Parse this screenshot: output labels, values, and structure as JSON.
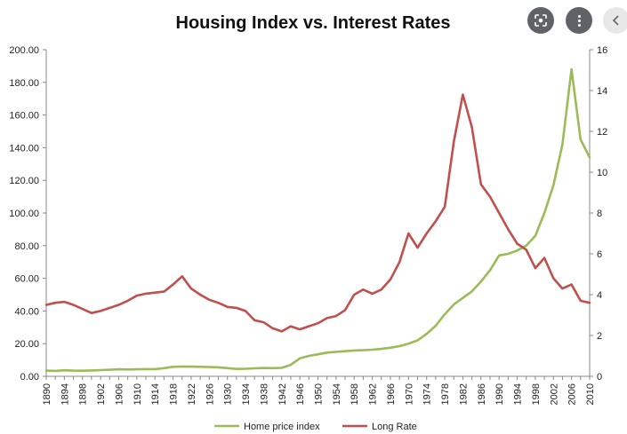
{
  "colors": {
    "home": "#9BBB59",
    "rate": "#C0504D",
    "overlay": "#5f6368"
  },
  "icons": {
    "lens": "lens-icon",
    "more": "more-vert-icon",
    "back": "back-arrow-icon"
  },
  "chart_data": {
    "type": "line",
    "title": "Housing Index vs. Interest Rates",
    "grid": false,
    "legend_position": "bottom",
    "x": [
      1890,
      1892,
      1894,
      1896,
      1898,
      1900,
      1902,
      1904,
      1906,
      1908,
      1910,
      1912,
      1914,
      1916,
      1918,
      1920,
      1922,
      1924,
      1926,
      1928,
      1930,
      1932,
      1934,
      1936,
      1938,
      1940,
      1942,
      1944,
      1946,
      1948,
      1950,
      1952,
      1954,
      1956,
      1958,
      1960,
      1962,
      1964,
      1966,
      1968,
      1970,
      1972,
      1974,
      1976,
      1978,
      1980,
      1982,
      1984,
      1986,
      1988,
      1990,
      1992,
      1994,
      1996,
      1998,
      2000,
      2002,
      2004,
      2006,
      2008,
      2010
    ],
    "xlim": [
      1890,
      2010
    ],
    "x_ticks": [
      "1890",
      "1894",
      "1898",
      "1902",
      "1906",
      "1910",
      "1914",
      "1918",
      "1922",
      "1926",
      "1930",
      "1934",
      "1938",
      "1942",
      "1946",
      "1950",
      "1954",
      "1958",
      "1962",
      "1966",
      "1970",
      "1974",
      "1978",
      "1982",
      "1986",
      "1990",
      "1994",
      "1998",
      "2002",
      "2006",
      "2010"
    ],
    "y_left_ticks": [
      "0.00",
      "20.00",
      "40.00",
      "60.00",
      "80.00",
      "100.00",
      "120.00",
      "140.00",
      "160.00",
      "180.00",
      "200.00"
    ],
    "y_left_lim": [
      0,
      200
    ],
    "y_right_ticks": [
      "0",
      "2",
      "4",
      "6",
      "8",
      "10",
      "12",
      "14",
      "16"
    ],
    "y_right_lim": [
      0,
      16
    ],
    "series": [
      {
        "name": "Home price index",
        "axis": "left",
        "values": [
          3.5,
          3.3,
          3.7,
          3.5,
          3.4,
          3.6,
          3.8,
          4.0,
          4.3,
          4.2,
          4.3,
          4.4,
          4.4,
          5.0,
          5.8,
          6.0,
          5.9,
          5.8,
          5.7,
          5.5,
          5.0,
          4.5,
          4.6,
          4.9,
          5.1,
          5.0,
          5.2,
          7.0,
          11.0,
          12.5,
          13.5,
          14.5,
          15.0,
          15.4,
          15.8,
          16.0,
          16.3,
          16.8,
          17.5,
          18.5,
          20.0,
          22.0,
          26.0,
          31.0,
          38.0,
          44.0,
          48.0,
          52.0,
          58.0,
          65.0,
          74.0,
          75.0,
          77.0,
          80.0,
          86.0,
          100.0,
          117.0,
          142.0,
          188.0,
          145.0,
          134.0
        ]
      },
      {
        "name": "Long Rate",
        "axis": "right",
        "values": [
          3.5,
          3.6,
          3.65,
          3.5,
          3.3,
          3.1,
          3.2,
          3.35,
          3.5,
          3.7,
          3.95,
          4.05,
          4.1,
          4.15,
          4.5,
          4.9,
          4.3,
          4.0,
          3.75,
          3.6,
          3.4,
          3.35,
          3.2,
          2.75,
          2.65,
          2.35,
          2.2,
          2.45,
          2.3,
          2.45,
          2.6,
          2.85,
          2.95,
          3.25,
          4.0,
          4.25,
          4.05,
          4.25,
          4.75,
          5.6,
          7.0,
          6.3,
          7.0,
          7.6,
          8.3,
          11.5,
          13.8,
          12.2,
          9.4,
          8.8,
          8.0,
          7.2,
          6.5,
          6.2,
          5.3,
          5.8,
          4.8,
          4.3,
          4.5,
          3.7,
          3.6
        ]
      }
    ]
  }
}
